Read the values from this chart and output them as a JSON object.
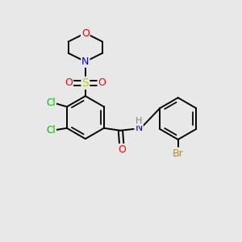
{
  "bg_color": "#e8e8e8",
  "atom_colors": {
    "C": "#000000",
    "H": "#808080",
    "N": "#0000ff",
    "O": "#ff0000",
    "S": "#cccc00",
    "Cl": "#00bb00",
    "Br": "#cc8800"
  },
  "bond_color": "#000000",
  "lw": 1.4
}
